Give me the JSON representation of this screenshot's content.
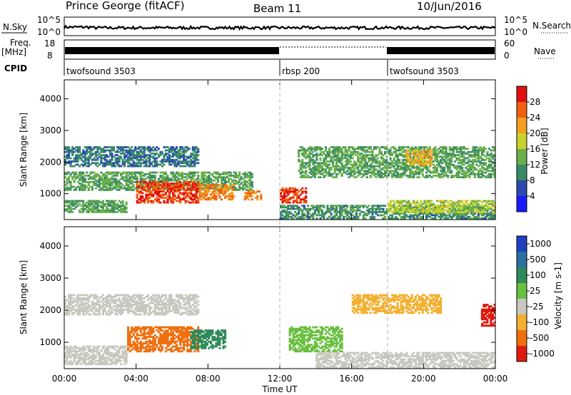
{
  "header": {
    "station": "Prince George (fitACF)",
    "beam": "Beam 11",
    "date": "10/Jun/2016"
  },
  "strip_labels": {
    "nsky": "N.Sky",
    "nsky_ticks": [
      "10^5",
      "10^0"
    ],
    "nsearch": "N.Search",
    "nsearch_ticks": [
      "10^5",
      "10^0"
    ],
    "freq": "Freq.",
    "freq_unit": "[MHz]",
    "freq_ticks": [
      "18",
      "8"
    ],
    "nave": "Nave",
    "nave_ticks": [
      "60",
      "0"
    ],
    "cpid": "CPID"
  },
  "cpid_segments": [
    {
      "label": "twofsound 3503",
      "start_h": 0,
      "end_h": 12
    },
    {
      "label": "rbsp 200",
      "start_h": 12,
      "end_h": 18
    },
    {
      "label": "twofsound 3503",
      "start_h": 18,
      "end_h": 24
    }
  ],
  "axes": {
    "x_ticks": [
      "00:00",
      "04:00",
      "08:00",
      "12:00",
      "16:00",
      "20:00",
      "00:00"
    ],
    "xlabel": "Time UT",
    "ylabel": "Slant Range [km]",
    "y_ticks": [
      "1000",
      "2000",
      "3000",
      "4000"
    ]
  },
  "power_colorbar": {
    "label": "Power [dB]",
    "ticks": [
      "4",
      "8",
      "12",
      "16",
      "20",
      "24",
      "28"
    ],
    "colors": [
      "#1a1aff",
      "#2a4ab0",
      "#3a8a6a",
      "#6ab04a",
      "#c8d22a",
      "#f4a020",
      "#f06010",
      "#e01010"
    ]
  },
  "velocity_colorbar": {
    "label": "Velocity [m s-1]",
    "ticks": [
      "1000",
      "500",
      "100",
      "25",
      "-25",
      "-100",
      "-500",
      "-1000"
    ],
    "colors": [
      "#2040c0",
      "#2a70a0",
      "#2e8a5a",
      "#6ac040",
      "#c8c8c0",
      "#f4b030",
      "#f07010",
      "#e01a10"
    ]
  },
  "chart_data": [
    {
      "type": "heatmap",
      "title": "Power",
      "xlabel": "Time UT",
      "ylabel": "Slant Range [km]",
      "xlim_hours": [
        0,
        24
      ],
      "ylim_km": [
        180,
        4600
      ],
      "value_range": [
        0,
        30
      ],
      "regions": [
        {
          "t0": 0.0,
          "t1": 7.5,
          "r0": 1850,
          "r1": 2500,
          "value": 8
        },
        {
          "t0": 0.0,
          "t1": 10.5,
          "r0": 1100,
          "r1": 1700,
          "value": 12
        },
        {
          "t0": 0.0,
          "t1": 3.5,
          "r0": 400,
          "r1": 800,
          "value": 12
        },
        {
          "t0": 4.0,
          "t1": 7.5,
          "r0": 700,
          "r1": 1400,
          "value": 26
        },
        {
          "t0": 7.5,
          "t1": 9.5,
          "r0": 800,
          "r1": 1300,
          "value": 22
        },
        {
          "t0": 10.0,
          "t1": 11.0,
          "r0": 800,
          "r1": 1100,
          "value": 22
        },
        {
          "t0": 12.0,
          "t1": 13.5,
          "r0": 700,
          "r1": 1200,
          "value": 26
        },
        {
          "t0": 12.0,
          "t1": 24.0,
          "r0": 200,
          "r1": 650,
          "value": 10
        },
        {
          "t0": 13.0,
          "t1": 24.0,
          "r0": 1500,
          "r1": 2500,
          "value": 12
        },
        {
          "t0": 19.0,
          "t1": 20.5,
          "r0": 1900,
          "r1": 2400,
          "value": 20
        },
        {
          "t0": 18.0,
          "t1": 24.0,
          "r0": 400,
          "r1": 800,
          "value": 16
        }
      ]
    },
    {
      "type": "heatmap",
      "title": "Velocity",
      "xlabel": "Time UT",
      "ylabel": "Slant Range [km]",
      "xlim_hours": [
        0,
        24
      ],
      "ylim_km": [
        180,
        4600
      ],
      "value_range": [
        -1000,
        1000
      ],
      "regions": [
        {
          "t0": 0.0,
          "t1": 7.5,
          "r0": 1850,
          "r1": 2500,
          "value": 0
        },
        {
          "t0": 0.0,
          "t1": 3.5,
          "r0": 300,
          "r1": 900,
          "value": 0
        },
        {
          "t0": 3.5,
          "t1": 7.5,
          "r0": 700,
          "r1": 1500,
          "value": -200
        },
        {
          "t0": 7.0,
          "t1": 9.0,
          "r0": 800,
          "r1": 1400,
          "value": 200
        },
        {
          "t0": 12.5,
          "t1": 15.5,
          "r0": 700,
          "r1": 1500,
          "value": 60
        },
        {
          "t0": 14.0,
          "t1": 24.0,
          "r0": 200,
          "r1": 700,
          "value": 0
        },
        {
          "t0": 16.0,
          "t1": 21.0,
          "r0": 1900,
          "r1": 2500,
          "value": -80
        },
        {
          "t0": 23.2,
          "t1": 24.0,
          "r0": 1500,
          "r1": 2200,
          "value": -700
        }
      ]
    }
  ]
}
